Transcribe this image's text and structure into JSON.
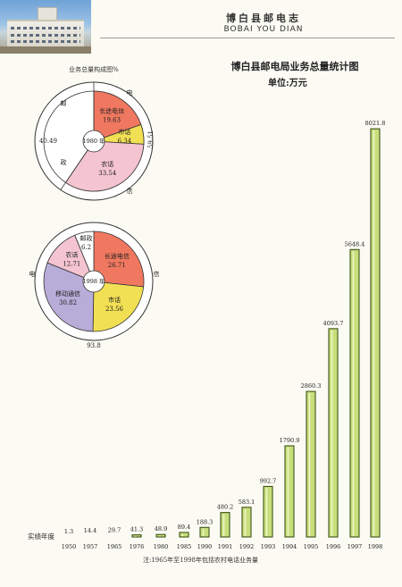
{
  "header": {
    "title": "博白县邮电志",
    "subtitle": "BOBAI YOU DIAN"
  },
  "pies": {
    "caption": "业务总量构成图%",
    "pie1980": {
      "year_label": "1980 年",
      "outer": [
        {
          "name": "邮政",
          "value": 40.49,
          "chars": [
            "邮",
            "政"
          ]
        },
        {
          "name": "电信",
          "value": 59.51,
          "chars": [
            "电",
            "信"
          ]
        }
      ],
      "inner": [
        {
          "name": "长途电信",
          "value": 19.63,
          "color": "#f07860"
        },
        {
          "name": "市话",
          "value": 6.34,
          "color": "#f2e054"
        },
        {
          "name": "农话",
          "value": 33.54,
          "color": "#f4c4d0"
        }
      ]
    },
    "pie1998": {
      "year_label": "1998 年",
      "outer": [
        {
          "name": "邮政",
          "value": 6.2
        },
        {
          "name": "电信",
          "value": 93.8,
          "chars": [
            "电",
            "信"
          ]
        }
      ],
      "inner": [
        {
          "name": "长途电信",
          "value": 26.71,
          "color": "#f07860"
        },
        {
          "name": "市话",
          "value": 23.56,
          "color": "#f2e054"
        },
        {
          "name": "移动通信",
          "value": 30.82,
          "color": "#b8acd8"
        },
        {
          "name": "农话",
          "value": 12.71,
          "color": "#f4c4d0"
        },
        {
          "name": "邮政",
          "value": 6.2,
          "color": "#ffffff"
        }
      ]
    }
  },
  "chart_data": {
    "type": "bar",
    "title": "博白县邮电局业务总量统计图",
    "unit": "单位:万元",
    "xlabel": "实绩年度",
    "categories": [
      "1950",
      "1957",
      "1965",
      "1976",
      "1980",
      "1985",
      "1990",
      "1991",
      "1992",
      "1993",
      "1994",
      "1995",
      "1996",
      "1997",
      "1998"
    ],
    "values": [
      1.3,
      14.4,
      29.7,
      41.3,
      48.9,
      89.4,
      188.3,
      480.2,
      583.1,
      992.7,
      1790.9,
      2860.3,
      4093.7,
      5648.4,
      8021.8
    ],
    "value_labels": [
      "1.3",
      "14.4",
      "29.7",
      "41.3",
      "48.9",
      "89.4",
      "188.3",
      "480.2",
      "583.1",
      "992.7",
      "1790.9",
      "2860.3",
      "4093.7",
      "5648.4",
      "8021.8"
    ],
    "bar_color": "#c8de7c",
    "bar_edge_color": "#3c5418",
    "grid": false
  },
  "footnote": "注:1965年至1998年包括农村电话业务量"
}
